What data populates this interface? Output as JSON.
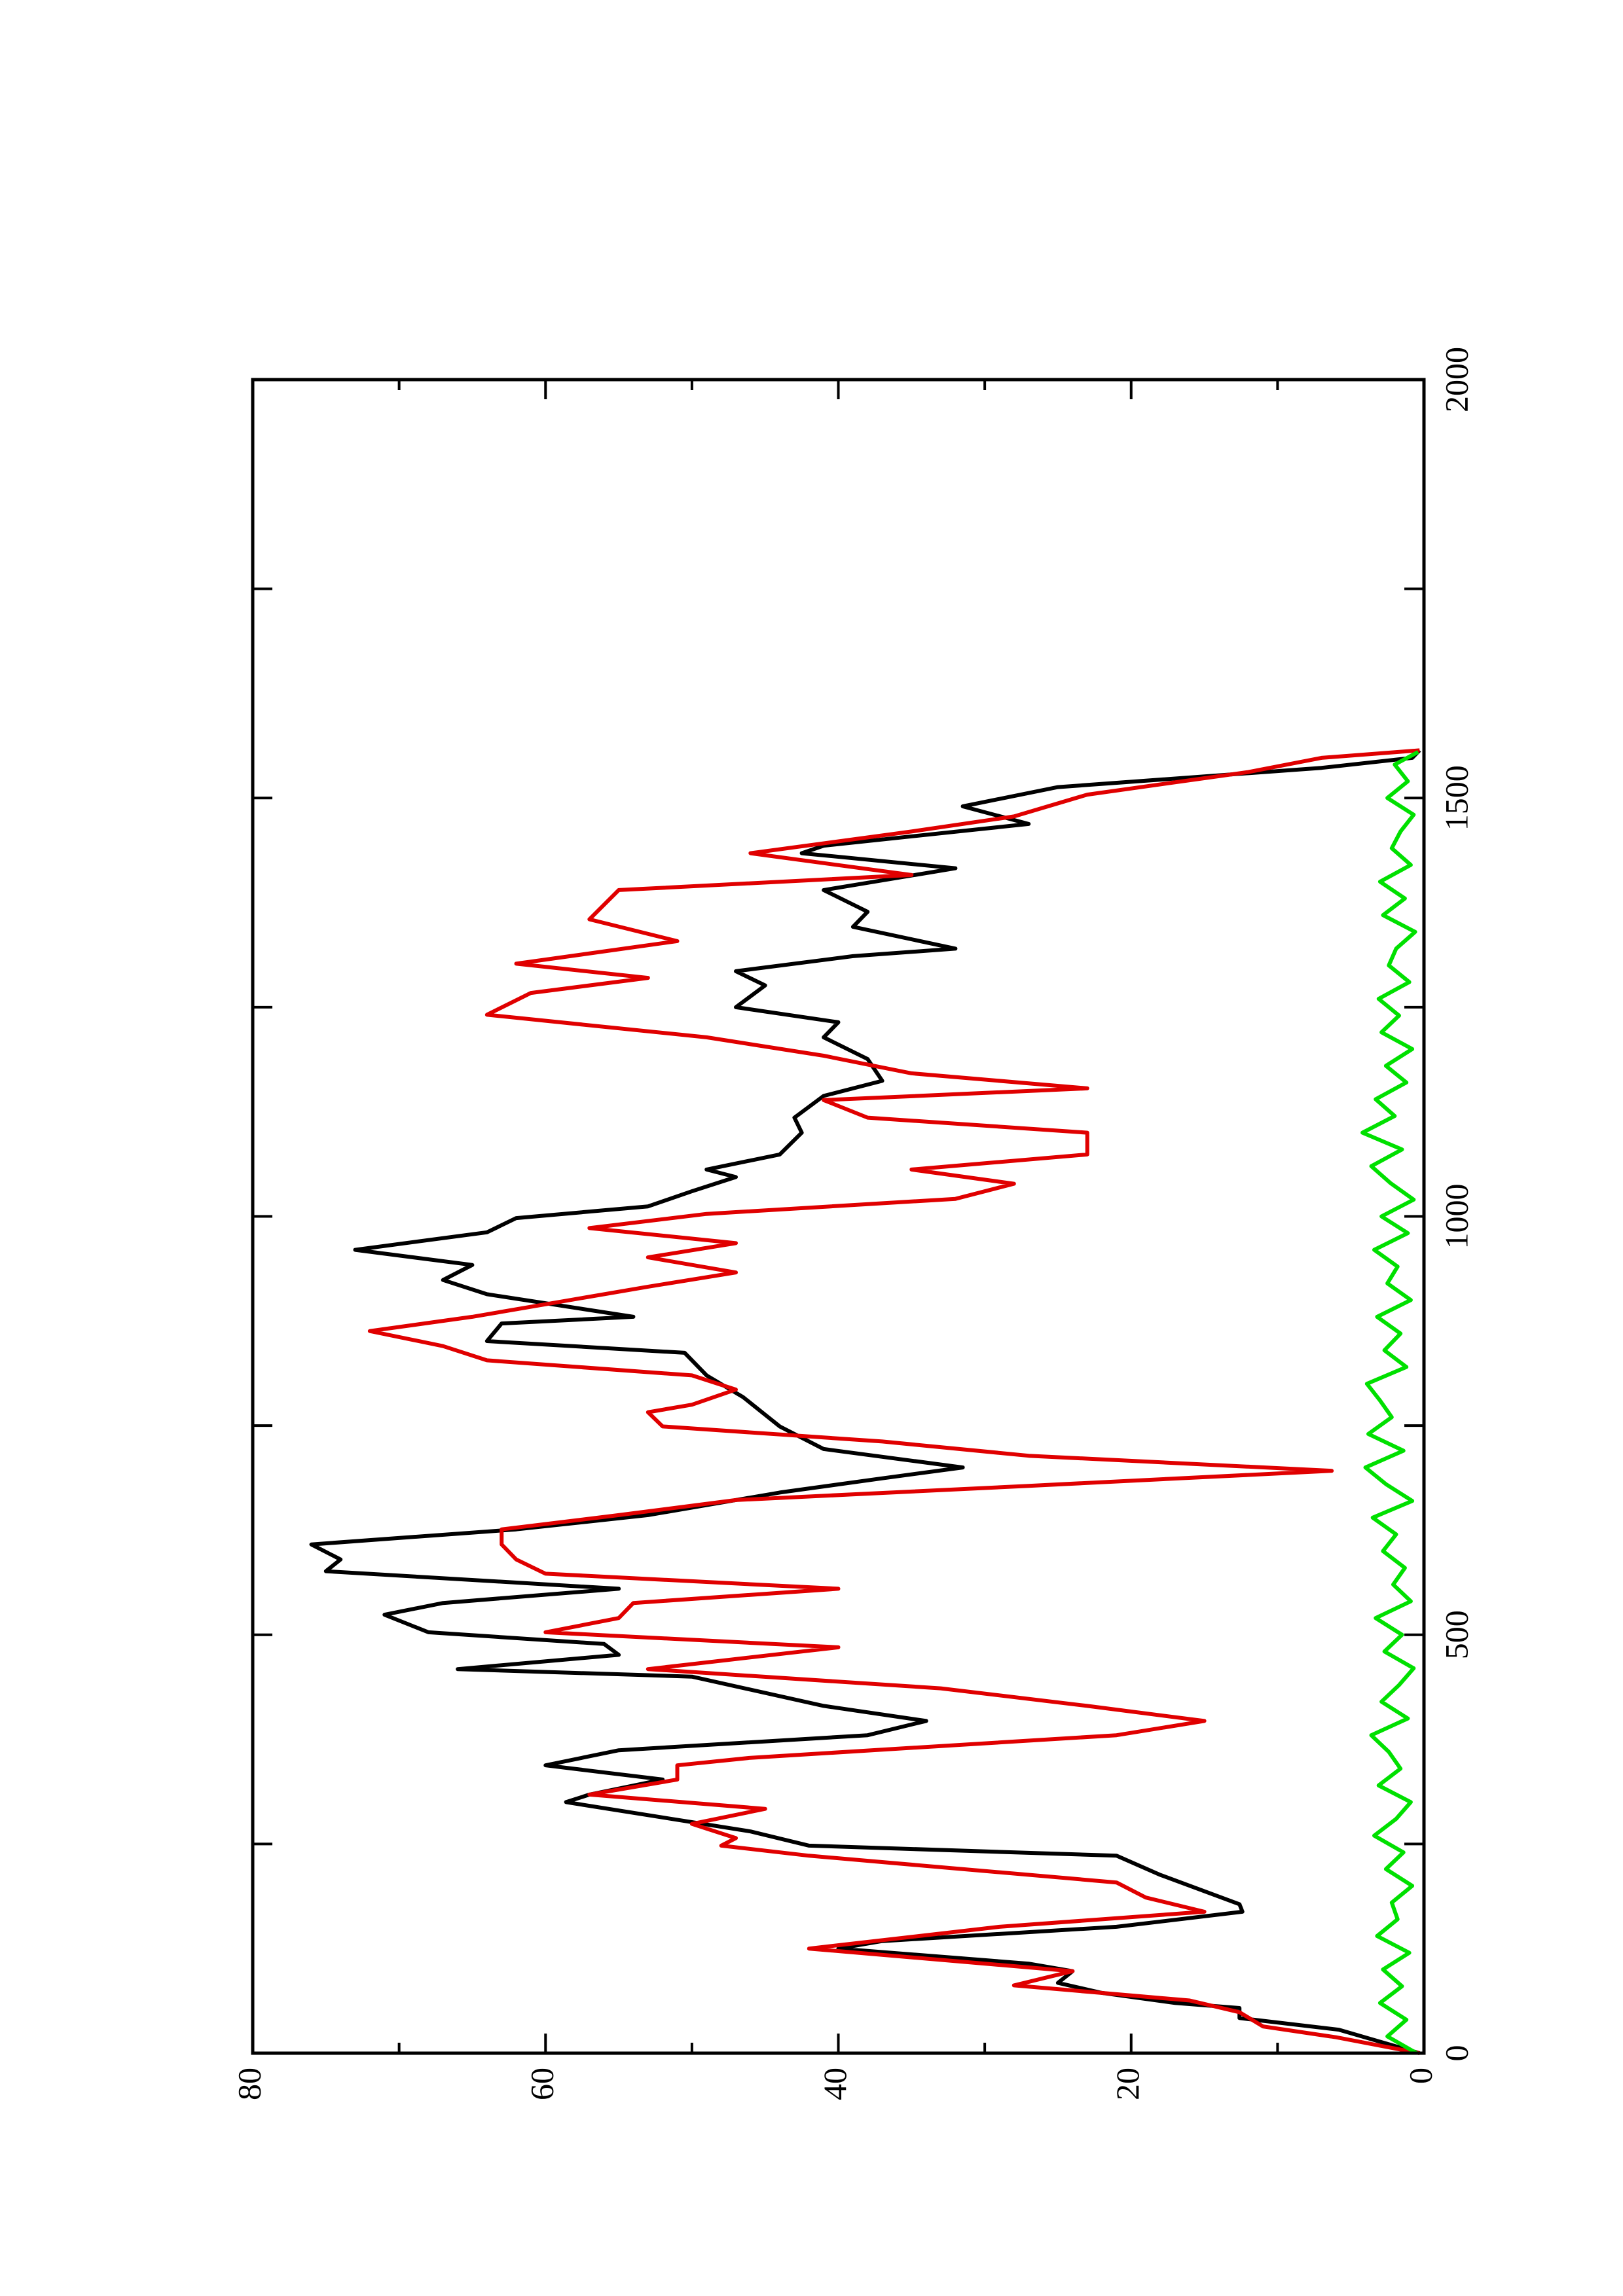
{
  "chart_data": {
    "type": "line",
    "xlim": [
      0,
      2000
    ],
    "ylim": [
      0,
      80
    ],
    "xticks": [
      0,
      500,
      1000,
      1500,
      2000
    ],
    "xminorticks": [
      250,
      750,
      1250,
      1750
    ],
    "yticks": [
      0,
      20,
      40,
      60,
      80
    ],
    "yminorticks": [
      10,
      30,
      50,
      70
    ],
    "rotated": true,
    "series": [
      {
        "color": "#000000",
        "x": [
          0,
          28,
          42,
          54,
          60,
          72,
          84,
          98,
          107,
          125,
          134,
          151,
          169,
          178,
          213,
          236,
          248,
          265,
          300,
          309,
          327,
          344,
          362,
          380,
          397,
          415,
          450,
          459,
          476,
          489,
          503,
          524,
          538,
          555,
          576,
          590,
          608,
          626,
          643,
          670,
          687,
          700,
          722,
          749,
          784,
          810,
          837,
          851,
          872,
          880,
          907,
          924,
          942,
          960,
          981,
          998,
          1012,
          1030,
          1047,
          1056,
          1074,
          1100,
          1118,
          1144,
          1162,
          1188,
          1214,
          1232,
          1250,
          1276,
          1293,
          1311,
          1320,
          1346,
          1364,
          1390,
          1416,
          1434,
          1443,
          1469,
          1490,
          1513,
          1536,
          1548,
          1557
        ],
        "values": [
          0.3,
          5.8,
          12.6,
          12.6,
          17,
          22,
          25,
          24,
          27,
          40,
          37,
          21,
          12.4,
          12.6,
          18,
          21,
          42,
          46,
          58.6,
          57,
          52,
          60,
          55,
          38,
          34,
          41,
          50,
          66,
          55,
          56,
          68,
          71,
          67,
          55,
          75,
          74,
          76,
          62,
          53,
          44,
          37,
          31.5,
          41,
          44,
          46.5,
          49,
          50.5,
          64,
          63,
          54,
          64,
          67,
          65,
          73,
          64,
          62,
          53,
          50,
          47,
          49,
          44,
          42.5,
          43,
          41,
          37,
          38,
          41,
          40,
          47,
          45,
          47,
          39,
          32,
          39,
          38,
          41,
          32,
          42.5,
          41,
          27,
          31.5,
          25,
          7,
          0.8,
          0.3
        ]
      },
      {
        "color": "#e00000",
        "x": [
          0,
          19,
          32,
          49,
          63,
          81,
          98,
          125,
          151,
          169,
          186,
          204,
          236,
          248,
          257,
          274,
          292,
          309,
          327,
          344,
          353,
          380,
          397,
          415,
          436,
          459,
          485,
          503,
          520,
          538,
          555,
          573,
          590,
          608,
          626,
          643,
          661,
          678,
          696,
          714,
          731,
          749,
          766,
          775,
          793,
          810,
          828,
          845,
          863,
          880,
          898,
          916,
          933,
          951,
          968,
          986,
          1003,
          1021,
          1039,
          1056,
          1074,
          1100,
          1118,
          1139,
          1153,
          1171,
          1192,
          1214,
          1241,
          1267,
          1285,
          1302,
          1329,
          1355,
          1390,
          1408,
          1434,
          1460,
          1478,
          1504,
          1531,
          1548,
          1557
        ],
        "values": [
          0.3,
          6,
          11,
          12.6,
          16,
          28,
          24,
          42,
          29,
          15,
          19,
          21,
          42,
          48,
          47,
          50,
          45,
          57,
          51,
          51,
          46,
          21,
          15,
          23,
          33,
          53,
          40,
          60,
          55,
          54,
          40,
          60,
          62,
          63,
          63,
          55,
          47,
          27,
          6.3,
          27,
          37,
          52,
          53,
          50,
          47,
          50,
          64,
          67,
          72,
          65,
          59,
          53,
          47,
          53,
          47,
          57,
          49,
          32,
          28,
          35,
          23,
          23,
          38,
          41,
          23,
          35,
          41,
          49,
          64,
          61,
          53,
          62,
          51,
          57,
          55,
          35,
          46,
          35,
          28,
          23,
          12,
          7,
          0.3
        ]
      },
      {
        "color": "#00e000",
        "x": [
          0,
          20,
          40,
          60,
          80,
          100,
          120,
          140,
          160,
          180,
          200,
          220,
          240,
          260,
          280,
          300,
          320,
          340,
          360,
          380,
          400,
          420,
          440,
          460,
          480,
          500,
          520,
          540,
          560,
          580,
          600,
          620,
          640,
          660,
          680,
          700,
          720,
          740,
          760,
          780,
          800,
          820,
          840,
          860,
          880,
          900,
          920,
          940,
          960,
          980,
          1000,
          1020,
          1040,
          1060,
          1080,
          1100,
          1120,
          1140,
          1160,
          1180,
          1200,
          1220,
          1240,
          1260,
          1280,
          1300,
          1320,
          1340,
          1360,
          1380,
          1400,
          1420,
          1440,
          1460,
          1480,
          1500,
          1520,
          1540,
          1555
        ],
        "values": [
          0.5,
          2.5,
          1.2,
          3,
          1.5,
          2.8,
          1,
          3.2,
          1.8,
          2.2,
          0.8,
          2.6,
          1.4,
          3.4,
          1.9,
          0.9,
          3.1,
          1.6,
          2.4,
          3.6,
          1.1,
          2.9,
          1.7,
          0.7,
          2.7,
          1.5,
          3.3,
          0.9,
          2.1,
          1.3,
          2.8,
          1.9,
          3.5,
          0.8,
          2.6,
          4,
          1.4,
          3.8,
          2.2,
          3,
          3.9,
          1.2,
          2.7,
          1.6,
          3.2,
          0.9,
          2.5,
          1.8,
          3.4,
          1.1,
          2.9,
          0.7,
          2.3,
          3.6,
          1.5,
          4.2,
          2,
          3.3,
          1.2,
          2.6,
          0.8,
          2.9,
          1.7,
          3.1,
          1,
          2.4,
          1.9,
          0.6,
          2.8,
          1.3,
          3,
          0.9,
          2.2,
          1.6,
          0.7,
          2.5,
          1.1,
          2,
          0.4
        ]
      }
    ]
  }
}
